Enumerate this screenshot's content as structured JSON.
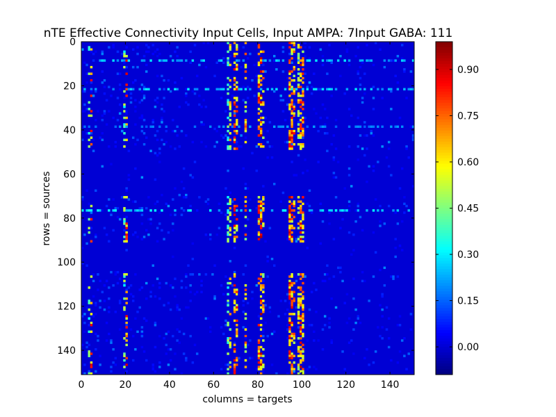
{
  "chart_data": {
    "type": "heatmap",
    "title": "nTE Effective Connectivity Input Cells, Input AMPA: 7Input GABA: 111",
    "xlabel": "columns = targets",
    "ylabel": "rows = sources",
    "rows": 151,
    "cols": 151,
    "xlim": [
      0,
      151
    ],
    "ylim": [
      151,
      0
    ],
    "x_ticks": [
      0,
      20,
      40,
      60,
      80,
      100,
      120,
      140
    ],
    "y_ticks": [
      0,
      20,
      40,
      60,
      80,
      100,
      120,
      140
    ],
    "colorbar": {
      "colormap": "jet",
      "vmin": -0.09,
      "vmax": 0.99,
      "ticks": [
        0.0,
        0.15,
        0.3,
        0.45,
        0.6,
        0.75,
        0.9
      ],
      "tick_labels": [
        "0.00",
        "0.15",
        "0.30",
        "0.45",
        "0.60",
        "0.75",
        "0.90"
      ]
    },
    "background_value": 0.0,
    "strong_target_columns": [
      {
        "col": 3,
        "strength": 0.55,
        "density": 0.22
      },
      {
        "col": 4,
        "strength": 0.9,
        "density": 0.25
      },
      {
        "col": 19,
        "strength": 0.55,
        "density": 0.3
      },
      {
        "col": 20,
        "strength": 0.9,
        "density": 0.3
      },
      {
        "col": 66,
        "strength": 0.5,
        "density": 0.35
      },
      {
        "col": 67,
        "strength": 0.75,
        "density": 0.3
      },
      {
        "col": 69,
        "strength": 0.9,
        "density": 0.45
      },
      {
        "col": 70,
        "strength": 0.85,
        "density": 0.4
      },
      {
        "col": 74,
        "strength": 0.8,
        "density": 0.3
      },
      {
        "col": 80,
        "strength": 0.9,
        "density": 0.4
      },
      {
        "col": 81,
        "strength": 0.95,
        "density": 0.45
      },
      {
        "col": 82,
        "strength": 0.8,
        "density": 0.3
      },
      {
        "col": 94,
        "strength": 0.95,
        "density": 0.55
      },
      {
        "col": 95,
        "strength": 0.9,
        "density": 0.5
      },
      {
        "col": 96,
        "strength": 0.85,
        "density": 0.3
      },
      {
        "col": 98,
        "strength": 0.75,
        "density": 0.45
      },
      {
        "col": 99,
        "strength": 0.95,
        "density": 0.55
      },
      {
        "col": 100,
        "strength": 0.85,
        "density": 0.45
      }
    ],
    "active_source_row_bands": [
      [
        0,
        48
      ],
      [
        70,
        90
      ],
      [
        105,
        150
      ]
    ],
    "strong_source_rows": [
      {
        "row": 8,
        "strength": 0.3
      },
      {
        "row": 21,
        "strength": 0.3
      },
      {
        "row": 38,
        "strength": 0.22
      },
      {
        "row": 76,
        "strength": 0.33
      }
    ]
  }
}
